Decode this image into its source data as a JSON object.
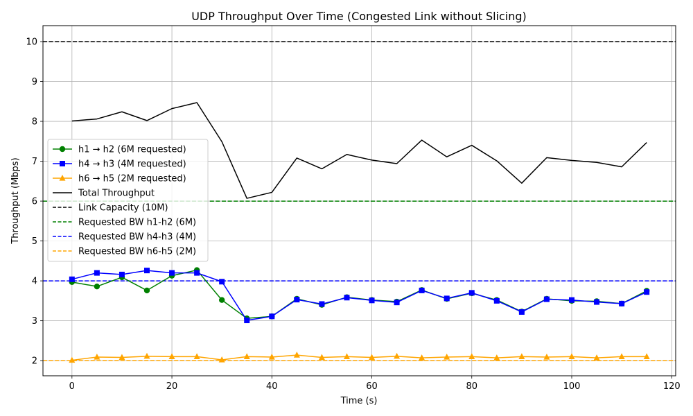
{
  "chart_data": {
    "type": "line",
    "title": "UDP Throughput Over Time (Congested Link without Slicing)",
    "xlabel": "Time (s)",
    "ylabel": "Throughput (Mbps)",
    "xlim": [
      -5.8,
      120.8
    ],
    "ylim": [
      1.62,
      10.4
    ],
    "x_ticks": [
      0,
      20,
      40,
      60,
      80,
      100,
      120
    ],
    "y_ticks": [
      2,
      3,
      4,
      5,
      6,
      7,
      8,
      9,
      10
    ],
    "grid": true,
    "legend_position": "center-left",
    "x": [
      0,
      5,
      10,
      15,
      20,
      25,
      30,
      35,
      40,
      45,
      50,
      55,
      60,
      65,
      70,
      75,
      80,
      85,
      90,
      95,
      100,
      105,
      110,
      115
    ],
    "series": [
      {
        "name": "h1 → h2 (6M requested)",
        "color": "#008000",
        "marker": "circle",
        "values": [
          3.97,
          3.86,
          4.09,
          3.76,
          4.13,
          4.27,
          3.52,
          3.06,
          3.11,
          3.55,
          3.4,
          3.59,
          3.52,
          3.48,
          3.77,
          3.55,
          3.69,
          3.52,
          3.23,
          3.55,
          3.5,
          3.49,
          3.43,
          3.75
        ]
      },
      {
        "name": "h4 → h3 (4M requested)",
        "color": "#0000ff",
        "marker": "square",
        "values": [
          4.04,
          4.2,
          4.16,
          4.26,
          4.2,
          4.2,
          3.98,
          3.01,
          3.11,
          3.53,
          3.42,
          3.58,
          3.51,
          3.46,
          3.76,
          3.56,
          3.7,
          3.5,
          3.22,
          3.54,
          3.52,
          3.47,
          3.43,
          3.72
        ]
      },
      {
        "name": "h6 → h5 (2M requested)",
        "color": "#ffa500",
        "marker": "triangle",
        "values": [
          2.01,
          2.09,
          2.08,
          2.11,
          2.1,
          2.1,
          2.02,
          2.1,
          2.09,
          2.14,
          2.08,
          2.1,
          2.08,
          2.11,
          2.07,
          2.09,
          2.1,
          2.07,
          2.1,
          2.09,
          2.1,
          2.07,
          2.1,
          2.1
        ]
      },
      {
        "name": "Total Throughput",
        "color": "#000000",
        "marker": "none",
        "values": [
          8.01,
          8.06,
          8.24,
          8.02,
          8.32,
          8.47,
          7.49,
          6.07,
          6.22,
          7.08,
          6.81,
          7.17,
          7.03,
          6.94,
          7.53,
          7.11,
          7.4,
          7.01,
          6.45,
          7.09,
          7.02,
          6.97,
          6.86,
          7.47
        ]
      }
    ],
    "reference_lines": [
      {
        "name": "Link Capacity (10M)",
        "y": 10,
        "color": "#000000"
      },
      {
        "name": "Requested BW h1-h2 (6M)",
        "y": 6,
        "color": "#008000"
      },
      {
        "name": "Requested BW h4-h3 (4M)",
        "y": 4,
        "color": "#0000ff"
      },
      {
        "name": "Requested BW h6-h5 (2M)",
        "y": 2,
        "color": "#ffa500"
      }
    ]
  }
}
